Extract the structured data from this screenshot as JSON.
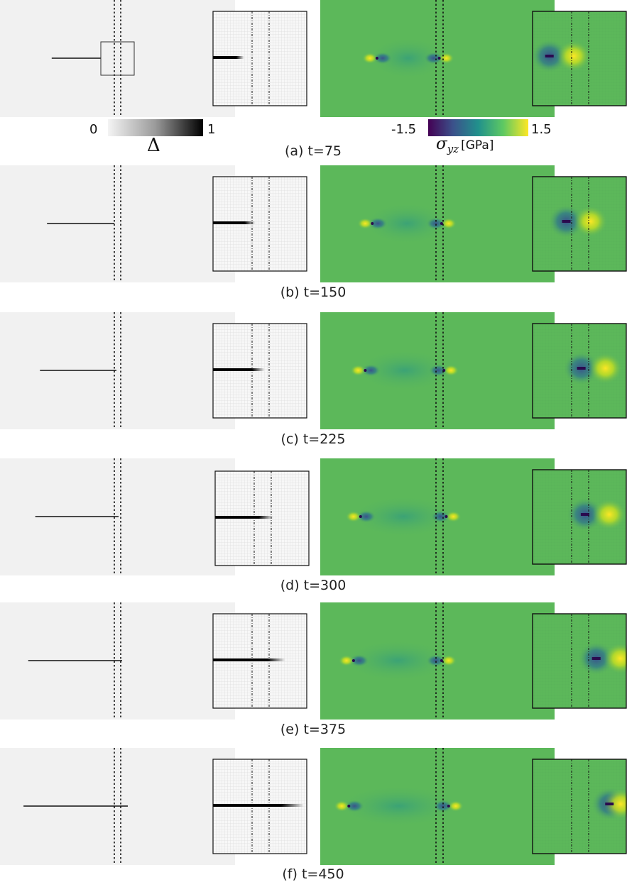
{
  "colorbar_damage": {
    "min_label": "0",
    "max_label": "1",
    "symbol": "Δ",
    "colors": [
      "#f4f4f4",
      "#000000"
    ]
  },
  "colorbar_stress": {
    "min_label": "-1.5",
    "max_label": "1.5",
    "symbol": "σ",
    "subscript": "yz",
    "unit": "[GPa]",
    "colors": [
      "#440154",
      "#3b528b",
      "#21918c",
      "#5ec962",
      "#fde725"
    ]
  },
  "colors": {
    "field_background": "#5cb85a",
    "damage_background": "#f1f1f1",
    "inset_background": "#f7f7f7"
  },
  "panels": [
    {
      "caption": "(a) t=75",
      "crack_left": 0.22,
      "inset_crack": 0.33,
      "tip_left": 0.23,
      "tip_right": 0.52,
      "inset_tip": 0.18
    },
    {
      "caption": "(b) t=150",
      "crack_left": 0.2,
      "inset_crack": 0.45,
      "tip_left": 0.21,
      "tip_right": 0.53,
      "inset_tip": 0.36
    },
    {
      "caption": "(c) t=225",
      "crack_left": 0.17,
      "inset_crack": 0.55,
      "tip_left": 0.18,
      "tip_right": 0.54,
      "inset_tip": 0.52
    },
    {
      "caption": "(d) t=300",
      "crack_left": 0.15,
      "inset_crack": 0.62,
      "tip_left": 0.16,
      "tip_right": 0.55,
      "inset_tip": 0.56
    },
    {
      "caption": "(e) t=375",
      "crack_left": 0.12,
      "inset_crack": 0.77,
      "tip_left": 0.13,
      "tip_right": 0.53,
      "inset_tip": 0.68
    },
    {
      "caption": "(f) t=450",
      "crack_left": 0.1,
      "inset_crack": 0.97,
      "tip_left": 0.11,
      "tip_right": 0.56,
      "inset_tip": 0.82
    }
  ]
}
